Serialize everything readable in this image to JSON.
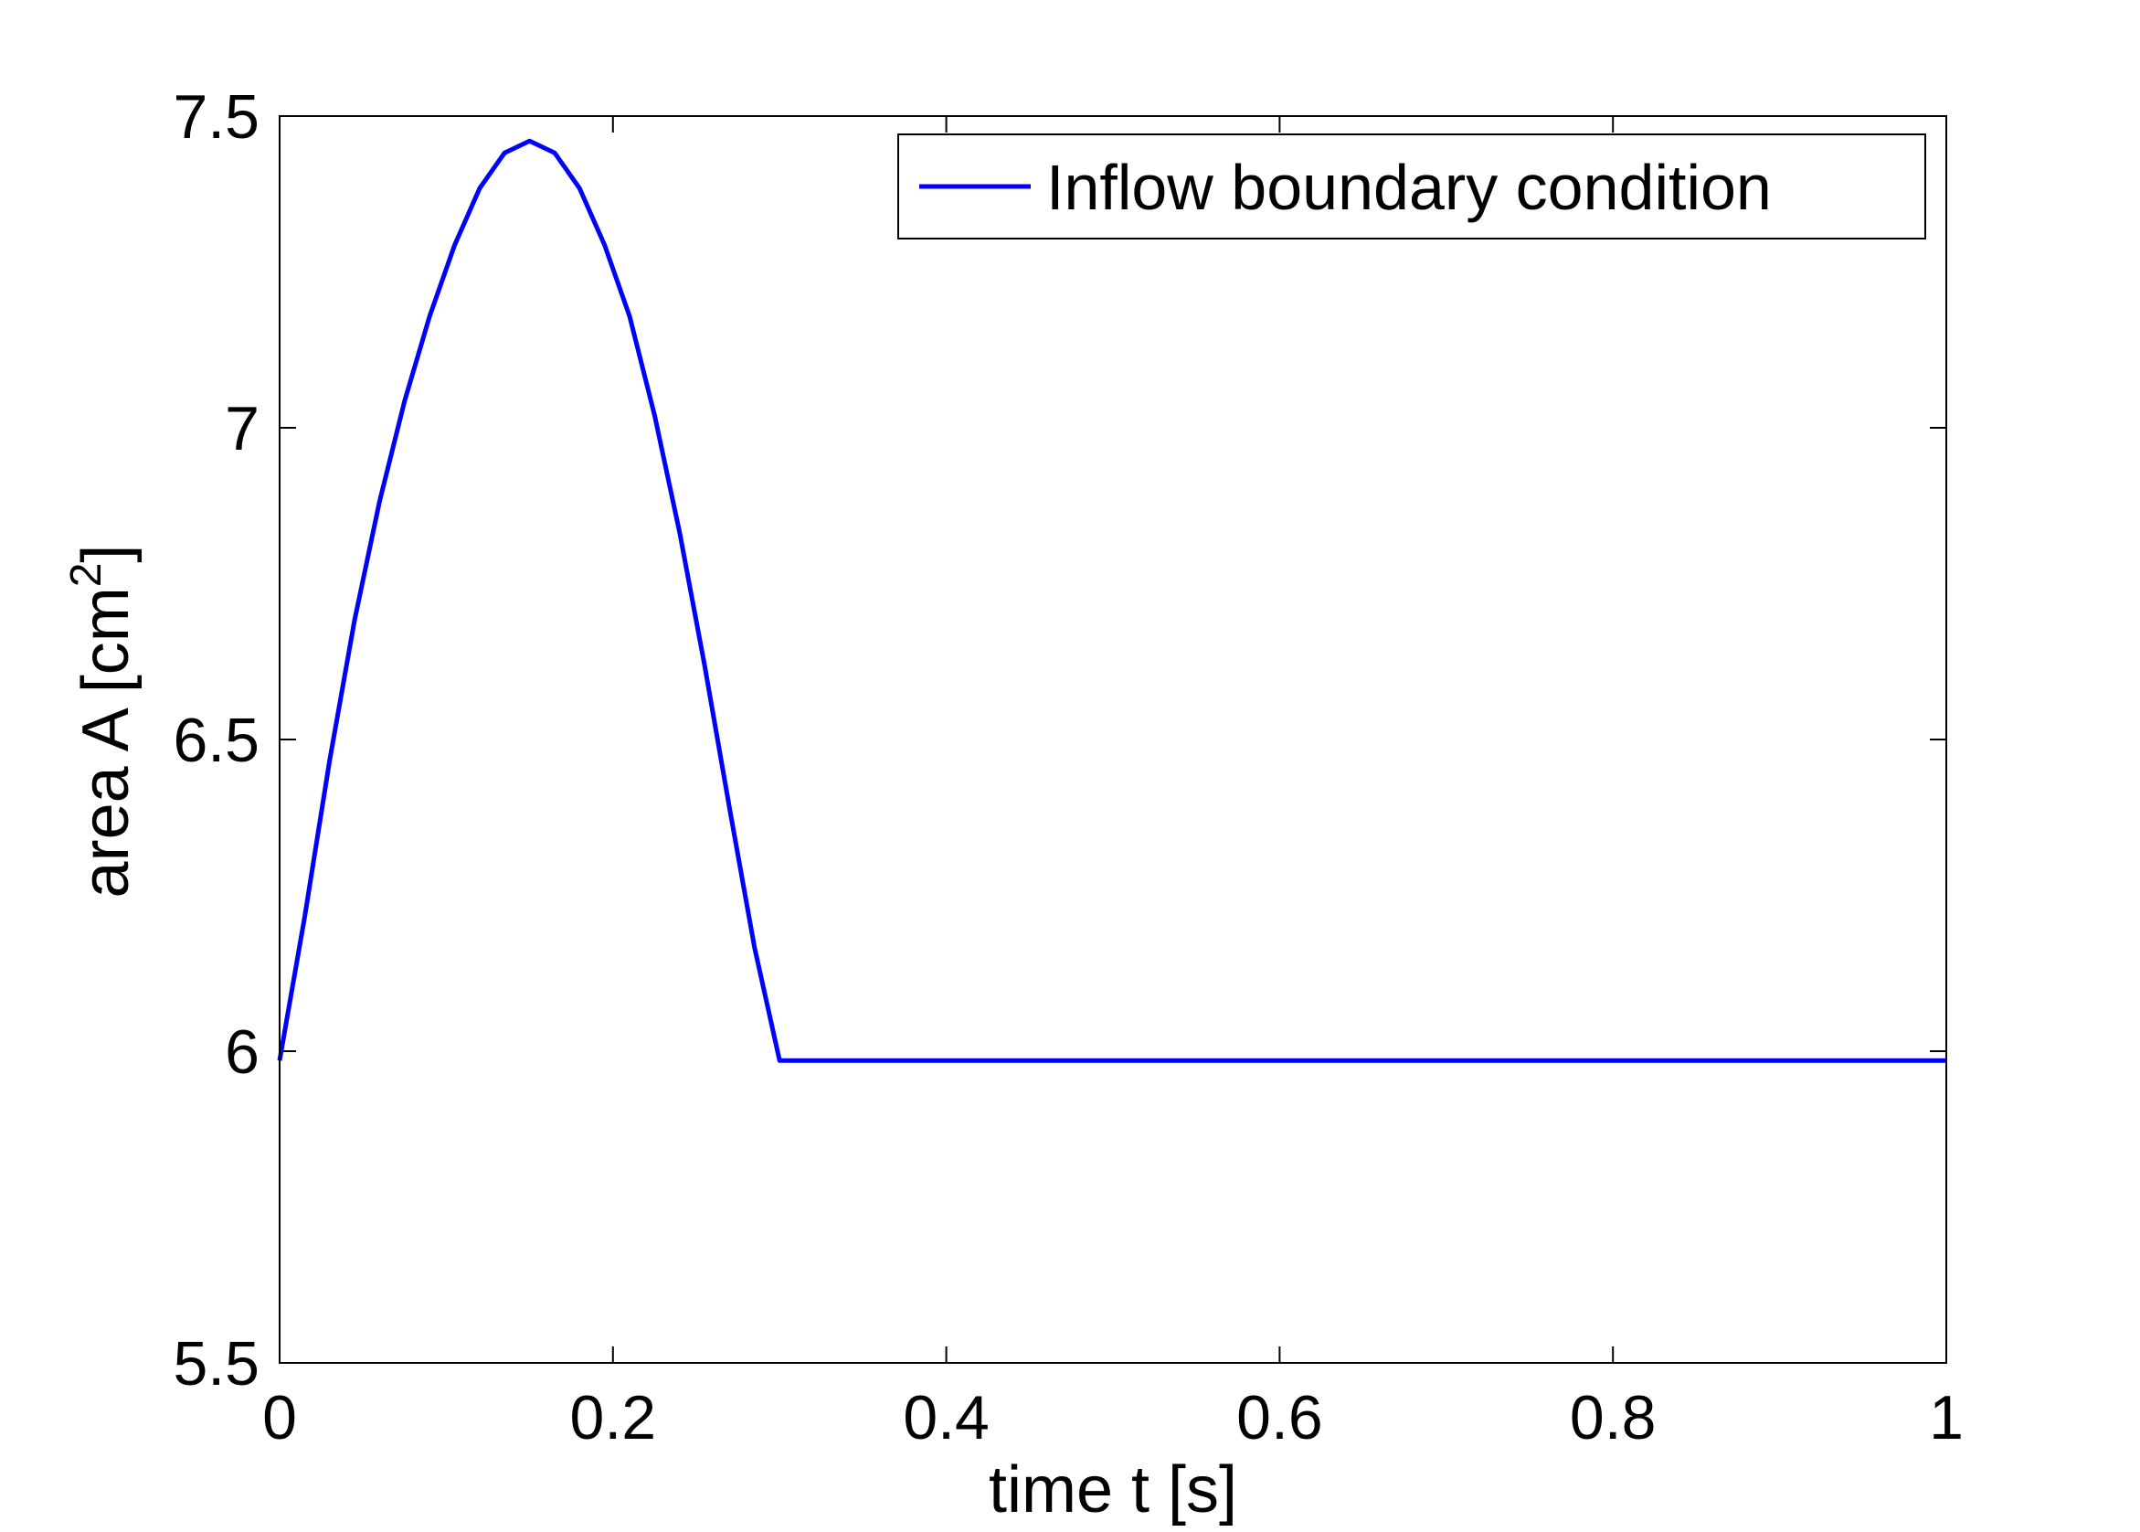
{
  "chart_data": {
    "type": "line",
    "xlabel": "time t [s]",
    "ylabel": {
      "prefix": "area A [cm",
      "superscript": "2",
      "suffix": "]"
    },
    "xlim": [
      0,
      1
    ],
    "ylim": [
      5.5,
      7.5
    ],
    "x_ticks": [
      "0",
      "0.2",
      "0.4",
      "0.6",
      "0.8",
      "1"
    ],
    "y_ticks": [
      "5.5",
      "6",
      "6.5",
      "7",
      "7.5"
    ],
    "grid": false,
    "legend_position": "top-right",
    "series": [
      {
        "name": "Inflow boundary condition",
        "color": "#0000ff",
        "x": [
          0,
          0.015,
          0.03,
          0.045,
          0.06,
          0.075,
          0.09,
          0.105,
          0.12,
          0.135,
          0.15,
          0.165,
          0.18,
          0.195,
          0.21,
          0.225,
          0.24,
          0.255,
          0.27,
          0.285,
          0.3,
          0.302,
          0.35,
          0.4,
          0.5,
          0.6,
          0.7,
          0.8,
          0.9,
          1.0
        ],
        "y": [
          5.985,
          6.215,
          6.466,
          6.692,
          6.882,
          7.043,
          7.179,
          7.293,
          7.384,
          7.441,
          7.46,
          7.441,
          7.384,
          7.293,
          7.179,
          7.02,
          6.832,
          6.619,
          6.389,
          6.166,
          5.985,
          5.985,
          5.985,
          5.985,
          5.985,
          5.985,
          5.985,
          5.985,
          5.985,
          5.985
        ]
      }
    ]
  }
}
